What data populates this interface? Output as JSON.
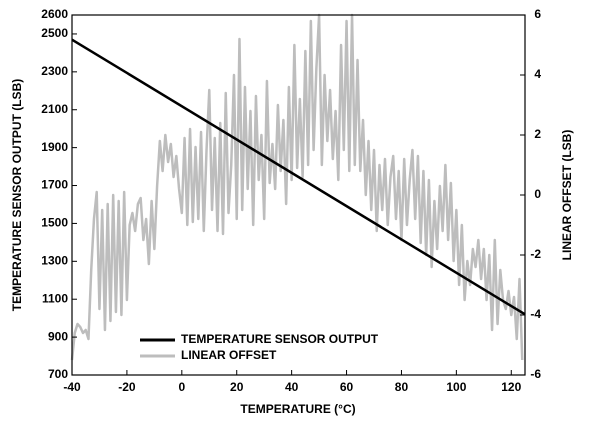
{
  "chart_data": {
    "type": "line",
    "xlabel": "TEMPERATURE (°C)",
    "ylabel": "TEMPERATURE SENSOR OUTPUT (LSB)",
    "y2label": "LINEAR OFFSET (LSB)",
    "xlim": [
      -40,
      125
    ],
    "xticks": [
      -40,
      -20,
      0,
      20,
      40,
      60,
      80,
      100,
      120
    ],
    "ylim": [
      700,
      2600
    ],
    "yticks": [
      700,
      900,
      1100,
      1300,
      1500,
      1700,
      1900,
      2100,
      2300,
      2500,
      2600
    ],
    "y2lim": [
      -6,
      6
    ],
    "y2ticks": [
      -6,
      -4,
      -2,
      0,
      2,
      4,
      6
    ],
    "legend": "lower center",
    "series": [
      {
        "name": "TEMPERATURE SENSOR OUTPUT",
        "color": "#000000",
        "x": [
          -40,
          125
        ],
        "values": [
          2470,
          1020
        ]
      },
      {
        "name": "LINEAR OFFSET",
        "color": "#bdbdbd",
        "axis": "y2",
        "x": [
          -40,
          -39,
          -38,
          -37,
          -36,
          -35,
          -34,
          -33,
          -32,
          -31,
          -30,
          -29,
          -28,
          -27,
          -26,
          -25,
          -24,
          -23,
          -22,
          -21,
          -20,
          -19,
          -18,
          -17,
          -16,
          -15,
          -14,
          -13,
          -12,
          -11,
          -10,
          -9,
          -8,
          -7,
          -6,
          -5,
          -4,
          -3,
          -2,
          -1,
          0,
          1,
          2,
          3,
          4,
          5,
          6,
          7,
          8,
          9,
          10,
          11,
          12,
          13,
          14,
          15,
          16,
          17,
          18,
          19,
          20,
          21,
          22,
          23,
          24,
          25,
          26,
          27,
          28,
          29,
          30,
          31,
          32,
          33,
          34,
          35,
          36,
          37,
          38,
          39,
          40,
          41,
          42,
          43,
          44,
          45,
          46,
          47,
          48,
          49,
          50,
          51,
          52,
          53,
          54,
          55,
          56,
          57,
          58,
          59,
          60,
          61,
          62,
          63,
          64,
          65,
          66,
          67,
          68,
          69,
          70,
          71,
          72,
          73,
          74,
          75,
          76,
          77,
          78,
          79,
          80,
          81,
          82,
          83,
          84,
          85,
          86,
          87,
          88,
          89,
          90,
          91,
          92,
          93,
          94,
          95,
          96,
          97,
          98,
          99,
          100,
          101,
          102,
          103,
          104,
          105,
          106,
          107,
          108,
          109,
          110,
          111,
          112,
          113,
          114,
          115,
          116,
          117,
          118,
          119,
          120,
          121,
          122,
          123,
          124
        ],
        "values": [
          -5.5,
          -4.6,
          -4.3,
          -4.4,
          -4.6,
          -4.5,
          -4.8,
          -2.5,
          -0.8,
          0.1,
          -3.8,
          -0.5,
          -4.5,
          -0.3,
          -4.2,
          0.0,
          -3.9,
          -0.2,
          -4.0,
          0.1,
          -3.5,
          -1.0,
          -0.6,
          -1.2,
          -0.3,
          -0.1,
          -1.5,
          -0.8,
          -2.3,
          -0.2,
          -1.8,
          0.3,
          1.8,
          0.8,
          2.0,
          1.1,
          1.7,
          0.6,
          1.3,
          0.2,
          -0.6,
          1.9,
          -1.0,
          2.2,
          -0.9,
          1.6,
          -0.8,
          2.1,
          -1.2,
          1.5,
          3.5,
          -0.5,
          1.9,
          -1.2,
          2.4,
          -1.3,
          3.4,
          -0.6,
          1.0,
          4.0,
          -0.8,
          5.2,
          -0.5,
          3.6,
          0.2,
          2.8,
          -1.0,
          3.3,
          0.5,
          2.0,
          -0.8,
          3.8,
          0.4,
          1.7,
          0.2,
          3.0,
          0.8,
          2.5,
          -0.3,
          3.6,
          0.5,
          5.0,
          0.9,
          3.2,
          0.6,
          4.8,
          1.0,
          5.8,
          1.5,
          4.2,
          6.0,
          1.0,
          4.0,
          1.8,
          3.5,
          1.2,
          2.8,
          0.5,
          5.0,
          1.5,
          5.8,
          0.8,
          6.0,
          1.0,
          4.5,
          0.8,
          2.5,
          0.0,
          1.8,
          -0.5,
          1.5,
          -1.2,
          1.0,
          -0.5,
          1.2,
          -1.0,
          0.6,
          1.3,
          -0.8,
          0.8,
          -1.5,
          1.2,
          -1.0,
          0.5,
          1.5,
          -0.8,
          1.3,
          -1.6,
          0.8,
          -2.0,
          0.5,
          -2.4,
          -0.2,
          -1.8,
          0.3,
          -1.2,
          1.0,
          -1.5,
          0.4,
          -2.2,
          -0.5,
          -3.0,
          -1.0,
          -3.5,
          -2.2,
          -3.0,
          -1.8,
          -2.4,
          -1.5,
          -2.8,
          -1.8,
          -3.5,
          -2.0,
          -4.5,
          -1.5,
          -4.3,
          -2.5,
          -3.5,
          -3.8,
          -3.2,
          -4.0,
          -3.4,
          -4.8,
          -2.8,
          -5.5
        ]
      }
    ]
  }
}
